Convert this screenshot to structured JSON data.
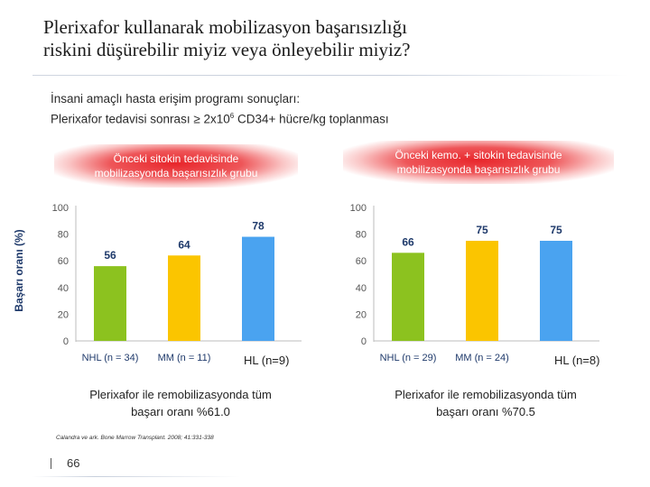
{
  "slide": {
    "title_line1": "Plerixafor kullanarak mobilizasyon başarısızlığı",
    "title_line2": "riskini düşürebilir miyiz veya önleyebilir miyiz?",
    "subtitle_line1": "İnsani amaçlı hasta  erişim programı sonuçları:",
    "subtitle_line2_pre": "Plerixafor tedavisi sonrası ≥ 2x10",
    "subtitle_line2_sup": "6",
    "subtitle_line2_post": " CD34+ hücre/kg toplanması",
    "y_axis_title": "Başarı oranı (%)",
    "citation": "Calandra ve ark. Bone Marrow Transplant. 2008; 41:331-338",
    "page_number": "66"
  },
  "left_panel": {
    "banner_line1": "Önceki sitokin tedavisinde",
    "banner_line2": "mobilizasyonda başarısızlık grubu",
    "hl_label": "HL (n=9)",
    "summary_line1": "Plerixafor ile remobilizasyonda tüm",
    "summary_line2": "başarı oranı %61.0"
  },
  "right_panel": {
    "banner_line1": "Önceki kemo. + sitokin tedavisinde",
    "banner_line2": "mobilizasyonda başarısızlık grubu",
    "hl_label": "HL (n=8)",
    "summary_line1": "Plerixafor ile remobilizasyonda tüm",
    "summary_line2": "başarı oranı %70.5"
  },
  "chart_data": [
    {
      "type": "bar",
      "title": "Önceki sitokin tedavisinde mobilizasyonda başarısızlık grubu",
      "ylabel": "Başarı oranı (%)",
      "categories": [
        "NHL (n = 34)",
        "MM (n = 11)",
        "HL (n=9)"
      ],
      "values": [
        56,
        64,
        78
      ],
      "value_labels": [
        "56",
        "64",
        "78"
      ],
      "colors": [
        "#8cc21f",
        "#fbc500",
        "#4aa3f0"
      ],
      "yticks": [
        "0",
        "20",
        "40",
        "60",
        "80",
        "100"
      ],
      "ylim": [
        0,
        100
      ],
      "show_category_labels": [
        true,
        true,
        false
      ]
    },
    {
      "type": "bar",
      "title": "Önceki kemo. + sitokin tedavisinde mobilizasyonda başarısızlık grubu",
      "ylabel": "Başarı oranı (%)",
      "categories": [
        "NHL (n = 29)",
        "MM (n = 24)",
        "HL (n=8)"
      ],
      "values": [
        66,
        75,
        75
      ],
      "value_labels": [
        "66",
        "75",
        "75"
      ],
      "colors": [
        "#8cc21f",
        "#fbc500",
        "#4aa3f0"
      ],
      "yticks": [
        "0",
        "20",
        "40",
        "60",
        "80",
        "100"
      ],
      "ylim": [
        0,
        100
      ],
      "show_category_labels": [
        true,
        true,
        false
      ]
    }
  ]
}
